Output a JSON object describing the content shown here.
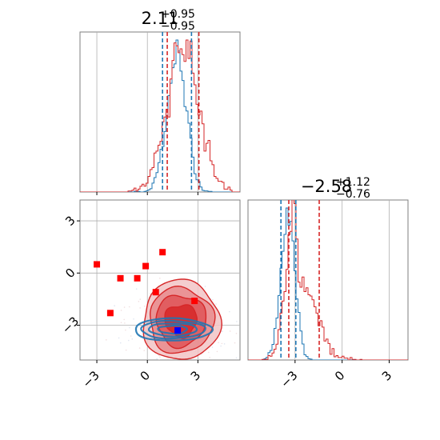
{
  "chart_data": [
    {
      "type": "histogram",
      "panel": "top-left",
      "title": {
        "value": "2.11",
        "plus": "+0.95",
        "minus": "−0.95"
      },
      "xlim": [
        -4.0,
        5.5
      ],
      "series": [
        {
          "name": "",
          "color": "#1f77b4",
          "quantiles": [
            0.9,
            2.62
          ]
        },
        {
          "name": "",
          "color": "#d62728",
          "quantiles": [
            1.18,
            3.06
          ]
        }
      ],
      "grid": true
    },
    {
      "type": "scatter",
      "panel": "bottom-left",
      "xlim": [
        -4.0,
        5.5
      ],
      "ylim": [
        -5.0,
        4.2
      ],
      "xticks": [
        "−3",
        "0",
        "3"
      ],
      "yticks": [
        "3",
        "0",
        "−3"
      ],
      "xtick_values": [
        -3,
        0,
        3
      ],
      "ytick_values": [
        3,
        0,
        -3
      ],
      "points": {
        "red_squares": [
          [
            -3.0,
            0.5
          ],
          [
            -2.2,
            -2.3
          ],
          [
            -1.6,
            -0.3
          ],
          [
            -0.6,
            -0.3
          ],
          [
            -0.1,
            0.4
          ],
          [
            0.5,
            -1.1
          ],
          [
            0.9,
            1.2
          ],
          [
            2.8,
            -1.6
          ]
        ],
        "blue_square": [
          1.8,
          -3.3
        ]
      },
      "contours": {
        "red_center": [
          1.9,
          -3.0
        ],
        "blue_center": [
          1.7,
          -3.25
        ]
      },
      "grid": true
    },
    {
      "type": "histogram",
      "panel": "bottom-right",
      "title": {
        "value": "−2.58",
        "plus": "+1.12",
        "minus": "−0.76"
      },
      "xlim": [
        -6.0,
        4.2
      ],
      "xticks": [
        "−3",
        "0",
        "3"
      ],
      "xtick_values": [
        -3,
        0,
        3
      ],
      "series": [
        {
          "name": "",
          "color": "#1f77b4",
          "quantiles": [
            -3.9,
            -2.95
          ]
        },
        {
          "name": "",
          "color": "#d62728",
          "quantiles": [
            -3.4,
            -1.46
          ]
        }
      ],
      "grid": true
    }
  ],
  "colors": {
    "blue": "#1f77b4",
    "red": "#d62728",
    "grid": "#b0b0b0",
    "spine": "#7f7f7f"
  }
}
